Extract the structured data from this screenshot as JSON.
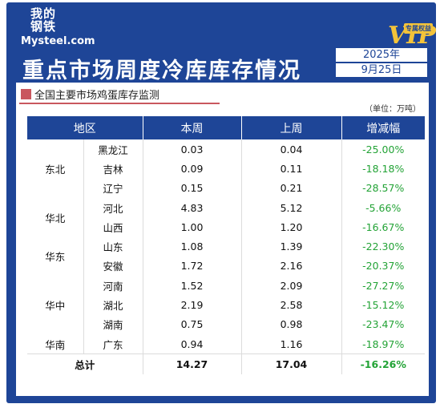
{
  "logo": {
    "cn_line1": "我的",
    "cn_line2": "钢铁",
    "en": "Mysteel.com"
  },
  "vip": {
    "letters": "VIP",
    "tag": "专属权益"
  },
  "title": "重点市场周度冷库库存情况",
  "date": {
    "year": "2025年",
    "day": "9月25日"
  },
  "subtitle": "全国主要市场鸡蛋库存监测",
  "unit": "（单位：万吨）",
  "colors": {
    "brand": "#1e4597",
    "accent": "#c9575e",
    "change": "#23a336"
  },
  "table": {
    "headers": [
      "地区",
      "本周",
      "上周",
      "增减幅"
    ],
    "regions": [
      {
        "name": "东北",
        "rows": [
          {
            "province": "黑龙江",
            "this_week": "0.03",
            "last_week": "0.04",
            "change": "-25.00%"
          },
          {
            "province": "吉林",
            "this_week": "0.09",
            "last_week": "0.11",
            "change": "-18.18%"
          },
          {
            "province": "辽宁",
            "this_week": "0.15",
            "last_week": "0.21",
            "change": "-28.57%"
          }
        ]
      },
      {
        "name": "华北",
        "rows": [
          {
            "province": "河北",
            "this_week": "4.83",
            "last_week": "5.12",
            "change": "-5.66%"
          },
          {
            "province": "山西",
            "this_week": "1.00",
            "last_week": "1.20",
            "change": "-16.67%"
          }
        ]
      },
      {
        "name": "华东",
        "rows": [
          {
            "province": "山东",
            "this_week": "1.08",
            "last_week": "1.39",
            "change": "-22.30%"
          },
          {
            "province": "安徽",
            "this_week": "1.72",
            "last_week": "2.16",
            "change": "-20.37%"
          }
        ]
      },
      {
        "name": "华中",
        "rows": [
          {
            "province": "河南",
            "this_week": "1.52",
            "last_week": "2.09",
            "change": "-27.27%"
          },
          {
            "province": "湖北",
            "this_week": "2.19",
            "last_week": "2.58",
            "change": "-15.12%"
          },
          {
            "province": "湖南",
            "this_week": "0.75",
            "last_week": "0.98",
            "change": "-23.47%"
          }
        ]
      },
      {
        "name": "华南",
        "rows": [
          {
            "province": "广东",
            "this_week": "0.94",
            "last_week": "1.16",
            "change": "-18.97%"
          }
        ]
      }
    ],
    "total": {
      "label": "总计",
      "this_week": "14.27",
      "last_week": "17.04",
      "change": "-16.26%"
    }
  }
}
